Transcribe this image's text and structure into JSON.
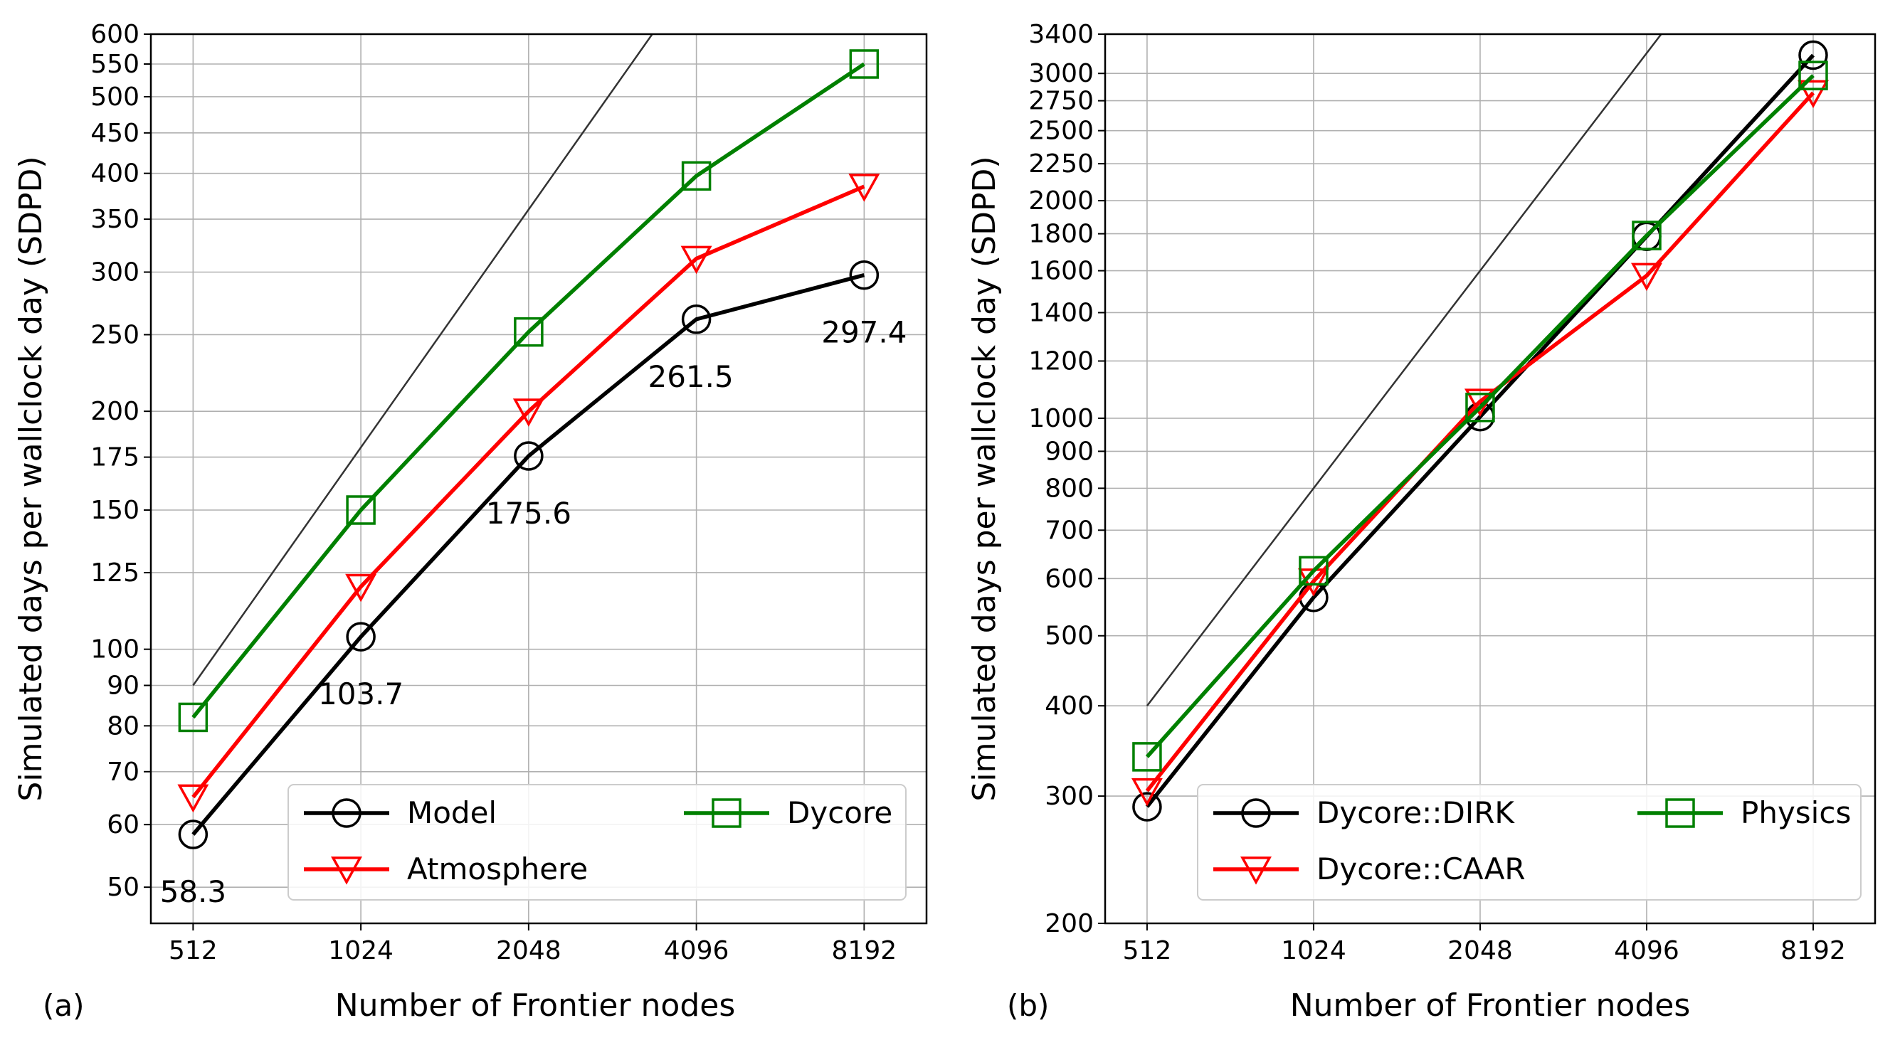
{
  "chart_data": [
    {
      "type": "line",
      "panel_label": "(a)",
      "xlabel": "Number of Frontier nodes",
      "ylabel": "Simulated days per wallclock day (SDPD)",
      "x_scale": "log2",
      "y_scale": "log",
      "xlim": [
        430,
        10600
      ],
      "ylim": [
        45,
        600
      ],
      "x": [
        512,
        1024,
        2048,
        4096,
        8192
      ],
      "x_tick_labels": [
        "512",
        "1024",
        "2048",
        "4096",
        "8192"
      ],
      "y_ticks": [
        50,
        60,
        70,
        80,
        90,
        100,
        125,
        150,
        175,
        200,
        250,
        300,
        350,
        400,
        450,
        500,
        550,
        600
      ],
      "y_tick_labels": [
        "50",
        "60",
        "70",
        "80",
        "90",
        "100",
        "125",
        "150",
        "175",
        "200",
        "250",
        "300",
        "350",
        "400",
        "450",
        "500",
        "550",
        "600"
      ],
      "grid": true,
      "legend_position": "lower-right",
      "legend_columns": 2,
      "ideal_line": {
        "x": [
          512,
          8192
        ],
        "y": [
          90,
          1440
        ]
      },
      "series": [
        {
          "name": "Model",
          "color": "#000000",
          "marker": "circle",
          "values": [
            58.3,
            103.7,
            175.6,
            261.5,
            297.4
          ]
        },
        {
          "name": "Atmosphere",
          "color": "#ff0000",
          "marker": "triangle-down",
          "values": [
            65,
            120,
            200,
            312,
            385
          ]
        },
        {
          "name": "Dycore",
          "color": "#008000",
          "marker": "square",
          "values": [
            82,
            150,
            252,
            397,
            550
          ]
        }
      ],
      "annotations": [
        {
          "text": "58.3",
          "x": 512,
          "y": 58.3,
          "series": "Model"
        },
        {
          "text": "103.7",
          "x": 1024,
          "y": 103.7,
          "series": "Model"
        },
        {
          "text": "175.6",
          "x": 2048,
          "y": 175.6,
          "series": "Model"
        },
        {
          "text": "261.5",
          "x": 4096,
          "y": 261.5,
          "series": "Model"
        },
        {
          "text": "297.4",
          "x": 8192,
          "y": 297.4,
          "series": "Model"
        }
      ]
    },
    {
      "type": "line",
      "panel_label": "(b)",
      "xlabel": "Number of Frontier nodes",
      "ylabel": "Simulated days per wallclock day (SDPD)",
      "x_scale": "log2",
      "y_scale": "log",
      "xlim": [
        430,
        10600
      ],
      "ylim": [
        200,
        3400
      ],
      "x": [
        512,
        1024,
        2048,
        4096,
        8192
      ],
      "x_tick_labels": [
        "512",
        "1024",
        "2048",
        "4096",
        "8192"
      ],
      "y_ticks": [
        200,
        300,
        400,
        500,
        600,
        700,
        800,
        900,
        1000,
        1200,
        1400,
        1600,
        1800,
        2000,
        2250,
        2500,
        2750,
        3000,
        3400
      ],
      "y_tick_labels": [
        "200",
        "300",
        "400",
        "500",
        "600",
        "700",
        "800",
        "900",
        "1000",
        "1200",
        "1400",
        "1600",
        "1800",
        "2000",
        "2250",
        "2500",
        "2750",
        "3000",
        "3400"
      ],
      "grid": true,
      "legend_position": "lower-right",
      "legend_columns": 2,
      "ideal_line": {
        "x": [
          512,
          8192
        ],
        "y": [
          400,
          6400
        ]
      },
      "series": [
        {
          "name": "Dycore::DIRK",
          "color": "#000000",
          "marker": "circle",
          "values": [
            290,
            565,
            1005,
            1785,
            3180
          ]
        },
        {
          "name": "Dycore::CAAR",
          "color": "#ff0000",
          "marker": "triangle-down",
          "values": [
            305,
            595,
            1055,
            1575,
            2820
          ]
        },
        {
          "name": "Physics",
          "color": "#008000",
          "marker": "square",
          "values": [
            340,
            615,
            1035,
            1790,
            2980
          ]
        }
      ],
      "annotations": []
    }
  ]
}
